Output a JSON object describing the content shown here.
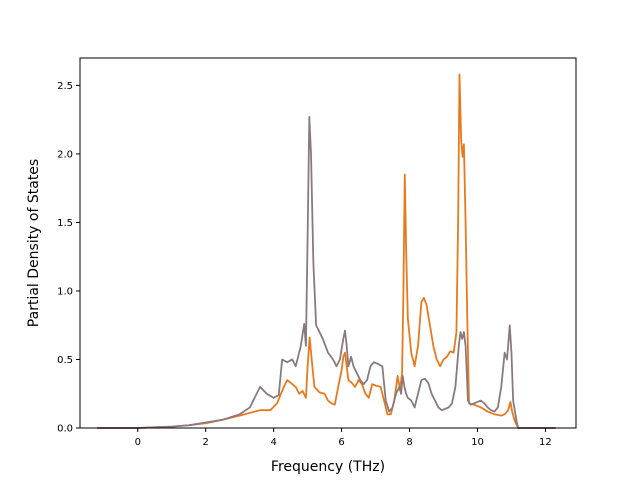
{
  "chart_data": {
    "type": "line",
    "title": "",
    "xlabel": "Frequency (THz)",
    "ylabel": "Partial Density of States",
    "xlim": [
      -1.7,
      12.9
    ],
    "ylim": [
      0.0,
      2.7
    ],
    "xticks": [
      0,
      2,
      4,
      6,
      8,
      10,
      12
    ],
    "yticks": [
      0.0,
      0.5,
      1.0,
      1.5,
      2.0,
      2.5
    ],
    "xtick_labels": [
      "0",
      "2",
      "4",
      "6",
      "8",
      "10",
      "12"
    ],
    "ytick_labels": [
      "0.0",
      "0.5",
      "1.0",
      "1.5",
      "2.0",
      "2.5"
    ],
    "grid": false,
    "legend": "none",
    "series": [
      {
        "color": "#e87a1e",
        "points": [
          [
            -1.2,
            0
          ],
          [
            0,
            0
          ],
          [
            0.5,
            0.005
          ],
          [
            1,
            0.01
          ],
          [
            1.5,
            0.02
          ],
          [
            2,
            0.035
          ],
          [
            2.5,
            0.06
          ],
          [
            3,
            0.09
          ],
          [
            3.3,
            0.11
          ],
          [
            3.6,
            0.13
          ],
          [
            3.9,
            0.13
          ],
          [
            4.1,
            0.18
          ],
          [
            4.3,
            0.3
          ],
          [
            4.4,
            0.35
          ],
          [
            4.55,
            0.32
          ],
          [
            4.65,
            0.3
          ],
          [
            4.75,
            0.25
          ],
          [
            4.85,
            0.27
          ],
          [
            4.95,
            0.22
          ],
          [
            5.0,
            0.45
          ],
          [
            5.06,
            0.66
          ],
          [
            5.12,
            0.5
          ],
          [
            5.2,
            0.3
          ],
          [
            5.35,
            0.26
          ],
          [
            5.5,
            0.25
          ],
          [
            5.6,
            0.2
          ],
          [
            5.7,
            0.18
          ],
          [
            5.8,
            0.17
          ],
          [
            5.9,
            0.3
          ],
          [
            6.0,
            0.42
          ],
          [
            6.05,
            0.52
          ],
          [
            6.1,
            0.55
          ],
          [
            6.15,
            0.45
          ],
          [
            6.2,
            0.35
          ],
          [
            6.3,
            0.33
          ],
          [
            6.4,
            0.3
          ],
          [
            6.5,
            0.35
          ],
          [
            6.6,
            0.32
          ],
          [
            6.7,
            0.25
          ],
          [
            6.8,
            0.22
          ],
          [
            6.9,
            0.32
          ],
          [
            7.0,
            0.31
          ],
          [
            7.15,
            0.3
          ],
          [
            7.25,
            0.2
          ],
          [
            7.35,
            0.1
          ],
          [
            7.45,
            0.1
          ],
          [
            7.55,
            0.2
          ],
          [
            7.65,
            0.38
          ],
          [
            7.72,
            0.28
          ],
          [
            7.78,
            0.4
          ],
          [
            7.82,
            1.0
          ],
          [
            7.86,
            1.85
          ],
          [
            7.9,
            1.3
          ],
          [
            7.95,
            0.8
          ],
          [
            8.05,
            0.55
          ],
          [
            8.15,
            0.45
          ],
          [
            8.25,
            0.6
          ],
          [
            8.35,
            0.92
          ],
          [
            8.42,
            0.95
          ],
          [
            8.5,
            0.9
          ],
          [
            8.6,
            0.75
          ],
          [
            8.7,
            0.6
          ],
          [
            8.8,
            0.5
          ],
          [
            8.9,
            0.45
          ],
          [
            9.0,
            0.5
          ],
          [
            9.1,
            0.52
          ],
          [
            9.2,
            0.56
          ],
          [
            9.3,
            0.55
          ],
          [
            9.38,
            0.7
          ],
          [
            9.43,
            1.5
          ],
          [
            9.47,
            2.58
          ],
          [
            9.52,
            2.1
          ],
          [
            9.56,
            1.98
          ],
          [
            9.6,
            2.07
          ],
          [
            9.65,
            1.5
          ],
          [
            9.7,
            0.8
          ],
          [
            9.75,
            0.18
          ],
          [
            9.9,
            0.17
          ],
          [
            10.1,
            0.15
          ],
          [
            10.3,
            0.12
          ],
          [
            10.5,
            0.1
          ],
          [
            10.7,
            0.09
          ],
          [
            10.8,
            0.1
          ],
          [
            10.9,
            0.13
          ],
          [
            10.97,
            0.19
          ],
          [
            11.02,
            0.12
          ],
          [
            11.1,
            0.05
          ],
          [
            11.2,
            0
          ],
          [
            12.3,
            0
          ]
        ]
      },
      {
        "color": "#8a7a7e",
        "points": [
          [
            -1.2,
            0
          ],
          [
            0,
            0
          ],
          [
            0.5,
            0.005
          ],
          [
            1,
            0.01
          ],
          [
            1.5,
            0.02
          ],
          [
            2,
            0.04
          ],
          [
            2.5,
            0.06
          ],
          [
            3,
            0.1
          ],
          [
            3.3,
            0.15
          ],
          [
            3.5,
            0.25
          ],
          [
            3.6,
            0.3
          ],
          [
            3.8,
            0.25
          ],
          [
            4.0,
            0.22
          ],
          [
            4.15,
            0.24
          ],
          [
            4.25,
            0.5
          ],
          [
            4.4,
            0.48
          ],
          [
            4.55,
            0.5
          ],
          [
            4.65,
            0.45
          ],
          [
            4.8,
            0.6
          ],
          [
            4.9,
            0.76
          ],
          [
            4.95,
            0.6
          ],
          [
            5.0,
            1.4
          ],
          [
            5.05,
            2.27
          ],
          [
            5.1,
            2.0
          ],
          [
            5.17,
            1.2
          ],
          [
            5.25,
            0.75
          ],
          [
            5.35,
            0.7
          ],
          [
            5.45,
            0.65
          ],
          [
            5.6,
            0.55
          ],
          [
            5.75,
            0.5
          ],
          [
            5.85,
            0.45
          ],
          [
            5.95,
            0.5
          ],
          [
            6.05,
            0.65
          ],
          [
            6.1,
            0.71
          ],
          [
            6.15,
            0.6
          ],
          [
            6.2,
            0.45
          ],
          [
            6.28,
            0.52
          ],
          [
            6.35,
            0.45
          ],
          [
            6.45,
            0.4
          ],
          [
            6.55,
            0.35
          ],
          [
            6.65,
            0.32
          ],
          [
            6.75,
            0.35
          ],
          [
            6.85,
            0.45
          ],
          [
            6.95,
            0.48
          ],
          [
            7.05,
            0.47
          ],
          [
            7.2,
            0.45
          ],
          [
            7.3,
            0.2
          ],
          [
            7.4,
            0.12
          ],
          [
            7.5,
            0.15
          ],
          [
            7.6,
            0.25
          ],
          [
            7.7,
            0.3
          ],
          [
            7.75,
            0.25
          ],
          [
            7.8,
            0.38
          ],
          [
            7.85,
            0.3
          ],
          [
            7.9,
            0.25
          ],
          [
            7.95,
            0.22
          ],
          [
            8.05,
            0.2
          ],
          [
            8.15,
            0.15
          ],
          [
            8.25,
            0.25
          ],
          [
            8.35,
            0.35
          ],
          [
            8.45,
            0.36
          ],
          [
            8.55,
            0.33
          ],
          [
            8.65,
            0.25
          ],
          [
            8.75,
            0.2
          ],
          [
            8.85,
            0.15
          ],
          [
            8.95,
            0.13
          ],
          [
            9.05,
            0.14
          ],
          [
            9.15,
            0.15
          ],
          [
            9.25,
            0.18
          ],
          [
            9.35,
            0.3
          ],
          [
            9.45,
            0.6
          ],
          [
            9.5,
            0.7
          ],
          [
            9.55,
            0.65
          ],
          [
            9.6,
            0.7
          ],
          [
            9.65,
            0.6
          ],
          [
            9.72,
            0.2
          ],
          [
            9.8,
            0.17
          ],
          [
            9.9,
            0.18
          ],
          [
            10.0,
            0.19
          ],
          [
            10.1,
            0.2
          ],
          [
            10.2,
            0.18
          ],
          [
            10.3,
            0.15
          ],
          [
            10.4,
            0.13
          ],
          [
            10.5,
            0.12
          ],
          [
            10.6,
            0.15
          ],
          [
            10.7,
            0.3
          ],
          [
            10.8,
            0.55
          ],
          [
            10.87,
            0.5
          ],
          [
            10.95,
            0.75
          ],
          [
            11.0,
            0.55
          ],
          [
            11.05,
            0.2
          ],
          [
            11.15,
            0.05
          ],
          [
            11.2,
            0
          ],
          [
            12.3,
            0
          ]
        ]
      }
    ]
  }
}
